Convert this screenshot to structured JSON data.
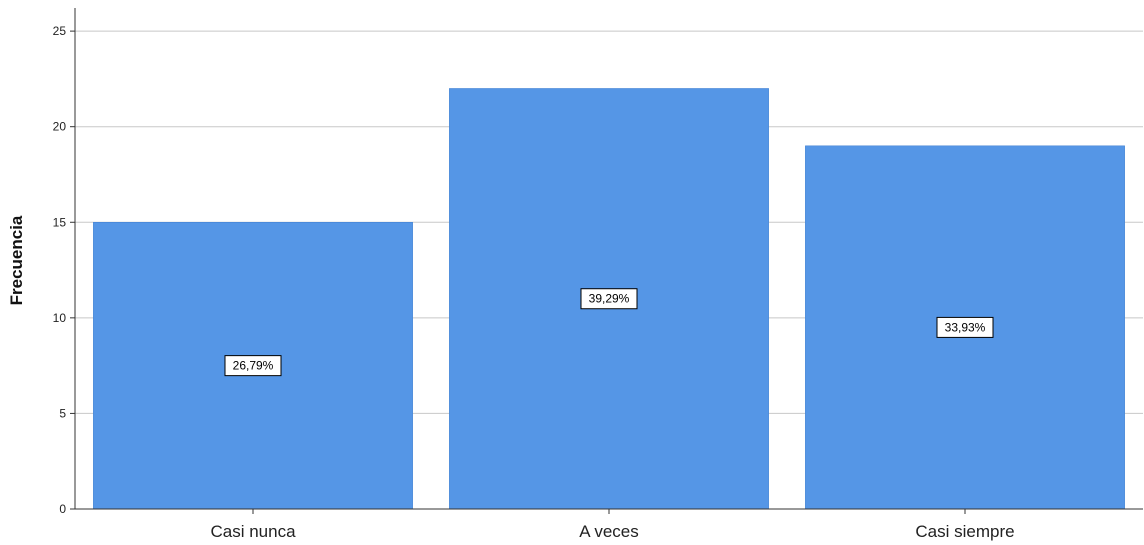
{
  "chart_data": {
    "type": "bar",
    "title": "",
    "xlabel": "",
    "ylabel": "Frecuencia",
    "categories": [
      "Casi nunca",
      "A veces",
      "Casi siempre"
    ],
    "values": [
      15,
      22,
      19
    ],
    "data_labels": [
      "26,79%",
      "39,29%",
      "33,93%"
    ],
    "ylim": [
      0,
      26
    ],
    "yticks": [
      0,
      5,
      10,
      15,
      20,
      25
    ],
    "ytick_labels": [
      "0",
      "5",
      "10",
      "15",
      "20",
      "25"
    ],
    "grid": true,
    "bar_color": "#5596e6"
  }
}
